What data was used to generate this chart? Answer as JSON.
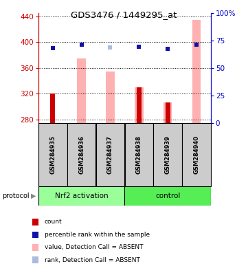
{
  "title": "GDS3476 / 1449295_at",
  "samples": [
    "GSM284935",
    "GSM284936",
    "GSM284937",
    "GSM284938",
    "GSM284939",
    "GSM284940"
  ],
  "groups": [
    "Nrf2 activation",
    "control"
  ],
  "ylim_left": [
    275,
    445
  ],
  "ylim_right": [
    0,
    100
  ],
  "yticks_left": [
    280,
    320,
    360,
    400,
    440
  ],
  "yticks_right": [
    0,
    25,
    50,
    75,
    100
  ],
  "ytick_labels_right": [
    "0",
    "25",
    "50",
    "75",
    "100%"
  ],
  "pink_bars": {
    "indices": [
      1,
      2,
      3,
      4,
      5
    ],
    "values": [
      375,
      355,
      330,
      307,
      435
    ]
  },
  "red_bars": {
    "indices": [
      0,
      3,
      4
    ],
    "values": [
      320,
      330,
      307
    ]
  },
  "blue_squares": {
    "indices": [
      0,
      1,
      3,
      4,
      5
    ],
    "values": [
      391,
      396,
      393,
      390,
      396
    ]
  },
  "lightblue_squares": {
    "indices": [
      2,
      3
    ],
    "values": [
      392,
      393
    ]
  },
  "colors": {
    "pink_bar": "#FFB0B0",
    "red_bar": "#CC0000",
    "blue_square": "#1111AA",
    "lightblue_square": "#AABBDD",
    "group_nrf2": "#99FF99",
    "group_control": "#55EE55",
    "axis_left_color": "#CC0000",
    "axis_right_color": "#0000CC",
    "sample_box_bg": "#CCCCCC",
    "sample_box_border": "#000000"
  },
  "legend": [
    {
      "label": "count",
      "color": "#CC0000"
    },
    {
      "label": "percentile rank within the sample",
      "color": "#1111AA"
    },
    {
      "label": "value, Detection Call = ABSENT",
      "color": "#FFB0B0"
    },
    {
      "label": "rank, Detection Call = ABSENT",
      "color": "#AABBDD"
    }
  ]
}
